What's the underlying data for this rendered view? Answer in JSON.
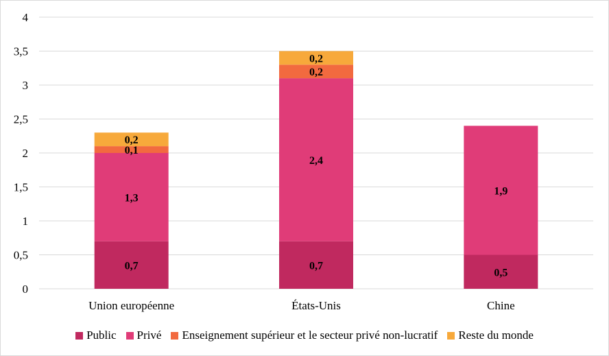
{
  "chart_data": {
    "type": "bar",
    "stacked": true,
    "categories": [
      "Union européenne",
      "États-Unis",
      "Chine"
    ],
    "series": [
      {
        "name": "Public",
        "color": "#c0295f",
        "values": [
          0.7,
          0.7,
          0.5
        ],
        "labels": [
          "0,7",
          "0,7",
          "0,5"
        ]
      },
      {
        "name": "Privé",
        "color": "#e03c78",
        "values": [
          1.3,
          2.4,
          1.9
        ],
        "labels": [
          "1,3",
          "2,4",
          "1,9"
        ]
      },
      {
        "name": "Enseignement supérieur et le secteur privé non-lucratif",
        "color": "#f26a3f",
        "values": [
          0.1,
          0.2,
          0
        ],
        "labels": [
          "0,1",
          "0,2",
          ""
        ]
      },
      {
        "name": "Reste du monde",
        "color": "#f7a93b",
        "values": [
          0.2,
          0.2,
          0
        ],
        "labels": [
          "0,2",
          "0,2",
          ""
        ]
      }
    ],
    "yticks": [
      "0",
      "0,5",
      "1",
      "1,5",
      "2",
      "2,5",
      "3",
      "3,5",
      "4"
    ],
    "ylim": [
      0,
      4
    ],
    "grid": true,
    "legend_position": "bottom"
  }
}
